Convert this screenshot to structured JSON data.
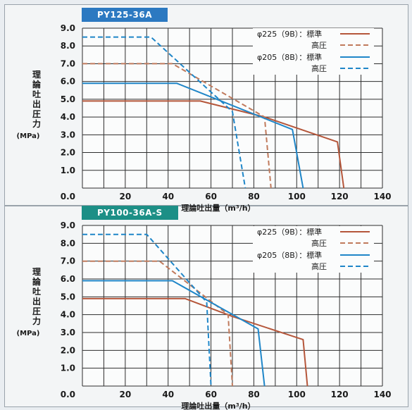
{
  "panels": [
    {
      "tag": "PY125-36A",
      "tag_color": "#2c79c1"
    },
    {
      "tag": "PY100-36A-S",
      "tag_color": "#1c8f86"
    }
  ],
  "colors": {
    "standard_225": "#b5563a",
    "high_225": "#c07a5c",
    "standard_205": "#1f86c8",
    "high_205": "#1f86c8",
    "grid": "#2d2d2d",
    "background": "#f3f5f6"
  },
  "chart_data": [
    {
      "type": "line",
      "title": "PY125-36A",
      "xlabel": "理論吐出量（m³/h）",
      "ylabel": [
        "理",
        "論",
        "吐",
        "出",
        "圧",
        "力",
        "(MPa)"
      ],
      "xlim": [
        0,
        140
      ],
      "ylim": [
        0,
        9
      ],
      "xticks": [
        "0.0",
        "20",
        "40",
        "60",
        "80",
        "100",
        "120",
        "140"
      ],
      "yticks": [
        "9.0",
        "8.0",
        "7.0",
        "6.0",
        "5.0",
        "4.0",
        "3.0",
        "2.0",
        "1.0"
      ],
      "grid": true,
      "legend_position": "top-right",
      "legend_labels": [
        "φ225（9B）：標準",
        "高圧",
        "φ205（8B）：標準",
        "高圧"
      ],
      "series": [
        {
          "name": "φ225（9B）：標準",
          "style": "solid",
          "color_key": "standard_225",
          "points": [
            [
              0,
              4.9
            ],
            [
              55,
              4.9
            ],
            [
              85,
              4.0
            ],
            [
              119,
              2.6
            ],
            [
              122,
              0
            ]
          ]
        },
        {
          "name": "高圧",
          "style": "dashed",
          "color_key": "high_225",
          "points": [
            [
              0,
              7.0
            ],
            [
              42,
              7.0
            ],
            [
              85,
              4.0
            ],
            [
              88,
              0
            ]
          ]
        },
        {
          "name": "φ205（8B）：標準",
          "style": "solid",
          "color_key": "standard_205",
          "points": [
            [
              0,
              5.9
            ],
            [
              44,
              5.9
            ],
            [
              98,
              3.3
            ],
            [
              103,
              0
            ]
          ]
        },
        {
          "name": "高圧",
          "style": "dashed",
          "color_key": "high_205",
          "points": [
            [
              0,
              8.5
            ],
            [
              32,
              8.5
            ],
            [
              70,
              4.3
            ],
            [
              76,
              0
            ]
          ]
        }
      ]
    },
    {
      "type": "line",
      "title": "PY100-36A-S",
      "xlabel": "理論吐出量（m³/h）",
      "ylabel": [
        "理",
        "論",
        "吐",
        "出",
        "圧",
        "力",
        "(MPa)"
      ],
      "xlim": [
        0,
        140
      ],
      "ylim": [
        0,
        9
      ],
      "xticks": [
        "0.0",
        "20",
        "40",
        "60",
        "80",
        "100",
        "120",
        "140"
      ],
      "yticks": [
        "9.0",
        "8.0",
        "7.0",
        "6.0",
        "5.0",
        "4.0",
        "3.0",
        "2.0",
        "1.0"
      ],
      "grid": true,
      "legend_position": "top-right",
      "legend_labels": [
        "φ225（9B）：標準",
        "高圧",
        "φ205（8B）：標準",
        "高圧"
      ],
      "series": [
        {
          "name": "φ225（9B）：標準",
          "style": "solid",
          "color_key": "standard_225",
          "points": [
            [
              0,
              4.9
            ],
            [
              48,
              4.9
            ],
            [
              70,
              3.9
            ],
            [
              103,
              2.6
            ],
            [
              105,
              0
            ]
          ]
        },
        {
          "name": "高圧",
          "style": "dashed",
          "color_key": "high_225",
          "points": [
            [
              0,
              7.0
            ],
            [
              36,
              7.0
            ],
            [
              68,
              4.0
            ],
            [
              70,
              0
            ]
          ]
        },
        {
          "name": "φ205（8B）：標準",
          "style": "solid",
          "color_key": "standard_205",
          "points": [
            [
              0,
              5.9
            ],
            [
              42,
              5.9
            ],
            [
              82,
              3.2
            ],
            [
              85,
              0
            ]
          ]
        },
        {
          "name": "高圧",
          "style": "dashed",
          "color_key": "high_205",
          "points": [
            [
              0,
              8.5
            ],
            [
              30,
              8.5
            ],
            [
              58,
              4.7
            ],
            [
              60,
              0
            ]
          ]
        }
      ]
    }
  ]
}
